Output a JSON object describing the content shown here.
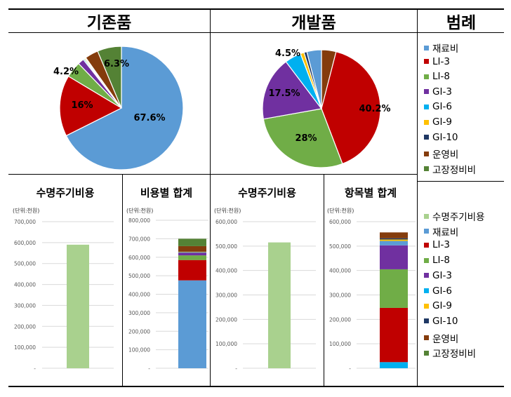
{
  "headers": {
    "existing": "기존품",
    "developed": "개발품",
    "legend": "범례"
  },
  "colors": {
    "재료비": "#5b9bd5",
    "LI-3": "#c00000",
    "LI-8": "#70ad47",
    "GI-3": "#7030a0",
    "GI-6": "#00b0f0",
    "GI-9": "#ffc000",
    "GI-10": "#1f3864",
    "운영비": "#843c0c",
    "고장정비비": "#548235",
    "수명주기비용": "#a9d18e"
  },
  "legend1": {
    "items": [
      {
        "label": "재료비",
        "color": "#5b9bd5"
      },
      {
        "label": "LI-3",
        "color": "#c00000"
      },
      {
        "label": "LI-8",
        "color": "#70ad47"
      },
      {
        "label": "GI-3",
        "color": "#7030a0"
      },
      {
        "label": "GI-6",
        "color": "#00b0f0"
      },
      {
        "label": "GI-9",
        "color": "#ffc000"
      },
      {
        "label": "GI-10",
        "color": "#1f3864"
      },
      {
        "label": "운영비",
        "color": "#843c0c"
      },
      {
        "label": "고장정비비",
        "color": "#548235"
      }
    ]
  },
  "legend2": {
    "items": [
      {
        "label": "수명주기비용",
        "color": "#a9d18e"
      },
      {
        "label": "재료비",
        "color": "#5b9bd5"
      },
      {
        "label": "LI-3",
        "color": "#c00000"
      },
      {
        "label": "LI-8",
        "color": "#70ad47"
      },
      {
        "label": "GI-3",
        "color": "#7030a0"
      },
      {
        "label": "GI-6",
        "color": "#00b0f0"
      },
      {
        "label": "GI-9",
        "color": "#ffc000"
      },
      {
        "label": "GI-10",
        "color": "#1f3864"
      },
      {
        "label": "운영비",
        "color": "#843c0c"
      },
      {
        "label": "고장정비비",
        "color": "#548235"
      }
    ]
  },
  "chart_data": [
    {
      "id": "pie1",
      "type": "pie",
      "labels": [
        "재료비",
        "LI-3",
        "LI-8",
        "GI-3",
        "GI-6",
        "GI-9",
        "GI-10",
        "운영비",
        "고장정비비"
      ],
      "values": [
        67.6,
        16.0,
        4.2,
        1.6,
        0.3,
        0.3,
        0.2,
        3.5,
        6.3
      ],
      "data_labels": [
        "67.6%",
        "16%",
        "4.2%",
        "",
        "",
        "",
        "",
        "",
        "6.3%"
      ]
    },
    {
      "id": "pie2",
      "type": "pie",
      "labels": [
        "운영비",
        "LI-3",
        "LI-8",
        "GI-3",
        "GI-6",
        "GI-9",
        "GI-10",
        "재료비"
      ],
      "values": [
        4.0,
        40.2,
        28.0,
        17.5,
        4.5,
        1.0,
        0.8,
        4.0
      ],
      "data_labels": [
        "",
        "40.2%",
        "28%",
        "17.5%",
        "4.5%",
        "",
        "",
        ""
      ]
    },
    {
      "id": "bar1",
      "type": "bar",
      "title": "수명주기비용",
      "unit": "(단위:천원)",
      "ticks": [
        "-",
        "100,000",
        "200,000",
        "300,000",
        "400,000",
        "500,000",
        "600,000",
        "700,000"
      ],
      "ylim": [
        0,
        700000
      ],
      "series": [
        {
          "label": "수명주기비용",
          "value": 590000
        }
      ]
    },
    {
      "id": "bar2",
      "type": "bar",
      "stacked": true,
      "title": "비용별 합계",
      "unit": "(단위:천원)",
      "ticks": [
        "-",
        "100,000",
        "200,000",
        "300,000",
        "400,000",
        "500,000",
        "600,000",
        "700,000",
        "800,000"
      ],
      "ylim": [
        0,
        800000
      ],
      "series": [
        {
          "label": "재료비",
          "value": 475000
        },
        {
          "label": "LI-3",
          "value": 110000
        },
        {
          "label": "LI-8",
          "value": 25000
        },
        {
          "label": "GI-3",
          "value": 15000
        },
        {
          "label": "GI-6",
          "value": 2000
        },
        {
          "label": "GI-9",
          "value": 2000
        },
        {
          "label": "GI-10",
          "value": 1000
        },
        {
          "label": "운영비",
          "value": 30000
        },
        {
          "label": "고장정비비",
          "value": 40000
        }
      ]
    },
    {
      "id": "bar3",
      "type": "bar",
      "title": "수명주기비용",
      "unit": "(단위:천원)",
      "ticks": [
        "-",
        "100,000",
        "200,000",
        "300,000",
        "400,000",
        "500,000",
        "600,000"
      ],
      "ylim": [
        0,
        600000
      ],
      "series": [
        {
          "label": "수명주기비용",
          "value": 515000
        }
      ]
    },
    {
      "id": "bar4",
      "type": "bar",
      "stacked": true,
      "title": "항목별 합계",
      "unit": "(단위:천원)",
      "ticks": [
        "-",
        "100,000",
        "200,000",
        "300,000",
        "400,000",
        "500,000",
        "600,000"
      ],
      "ylim": [
        0,
        600000
      ],
      "series": [
        {
          "label": "GI-6",
          "value": 25000
        },
        {
          "label": "LI-3",
          "value": 222000
        },
        {
          "label": "LI-8",
          "value": 158000
        },
        {
          "label": "GI-3",
          "value": 98000
        },
        {
          "label": "재료비",
          "value": 18000
        },
        {
          "label": "GI-9",
          "value": 6000
        },
        {
          "label": "GI-10",
          "value": 5000
        },
        {
          "label": "운영비",
          "value": 24000
        }
      ]
    }
  ]
}
